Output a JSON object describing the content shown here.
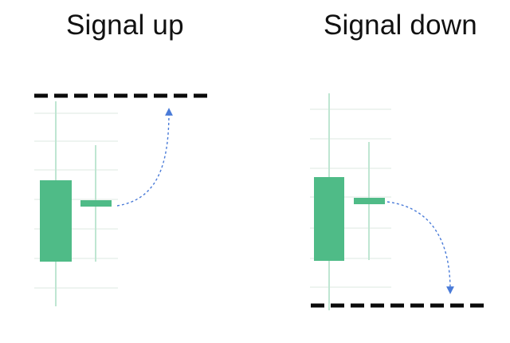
{
  "panels": [
    {
      "title": "Signal up"
    },
    {
      "title": "Signal down"
    }
  ],
  "colors": {
    "candle": "#4fbb87",
    "wick": "#bfe6d2",
    "grid": "#e8f0ec",
    "level": "#0a0a0a",
    "arrow": "#4a7bd8"
  }
}
